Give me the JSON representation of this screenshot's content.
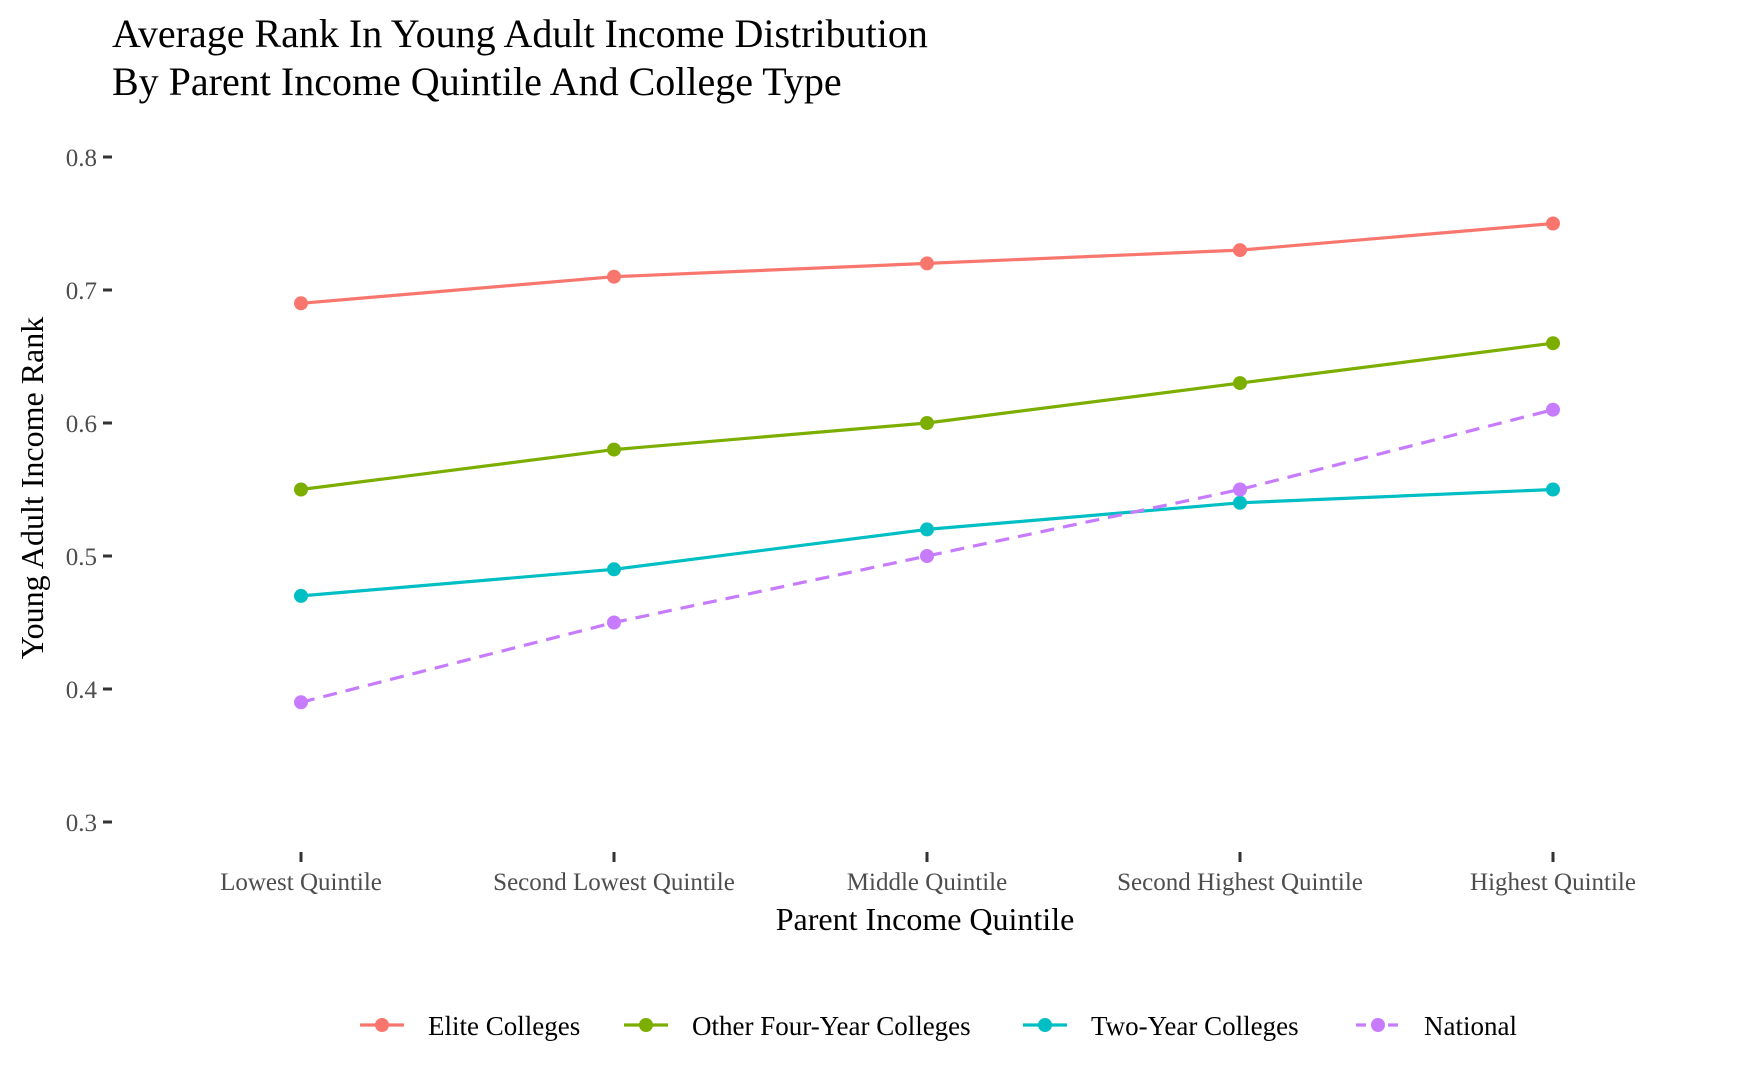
{
  "chart_data": {
    "type": "line",
    "title": "Average Rank In Young Adult Income Distribution",
    "subtitle": "By Parent Income Quintile And College Type",
    "xlabel": "Parent Income Quintile",
    "ylabel": "Young Adult Income Rank",
    "categories": [
      "Lowest Quintile",
      "Second Lowest Quintile",
      "Middle Quintile",
      "Second Highest Quintile",
      "Highest Quintile"
    ],
    "ylim": [
      0.3,
      0.8
    ],
    "yticks": [
      "0.3",
      "0.4",
      "0.5",
      "0.6",
      "0.7",
      "0.8"
    ],
    "grid": false,
    "legend_position": "bottom",
    "series": [
      {
        "name": "Elite Colleges",
        "color": "#F8766D",
        "dash": "solid",
        "values": [
          0.69,
          0.71,
          0.72,
          0.73,
          0.75
        ]
      },
      {
        "name": "Other Four-Year Colleges",
        "color": "#7CAE00",
        "dash": "solid",
        "values": [
          0.55,
          0.58,
          0.6,
          0.63,
          0.66
        ]
      },
      {
        "name": "Two-Year Colleges",
        "color": "#00BFC4",
        "dash": "solid",
        "values": [
          0.47,
          0.49,
          0.52,
          0.54,
          0.55
        ]
      },
      {
        "name": "National",
        "color": "#C77CFF",
        "dash": "dashed",
        "values": [
          0.39,
          0.45,
          0.5,
          0.55,
          0.61
        ]
      }
    ]
  }
}
